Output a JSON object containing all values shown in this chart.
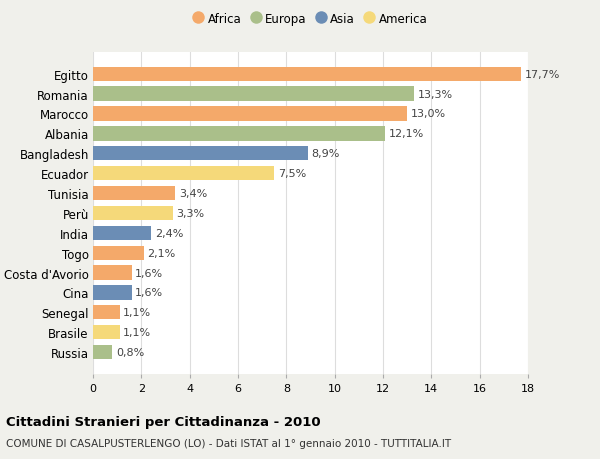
{
  "countries": [
    "Egitto",
    "Romania",
    "Marocco",
    "Albania",
    "Bangladesh",
    "Ecuador",
    "Tunisia",
    "Perù",
    "India",
    "Togo",
    "Costa d'Avorio",
    "Cina",
    "Senegal",
    "Brasile",
    "Russia"
  ],
  "values": [
    17.7,
    13.3,
    13.0,
    12.1,
    8.9,
    7.5,
    3.4,
    3.3,
    2.4,
    2.1,
    1.6,
    1.6,
    1.1,
    1.1,
    0.8
  ],
  "labels": [
    "17,7%",
    "13,3%",
    "13,0%",
    "12,1%",
    "8,9%",
    "7,5%",
    "3,4%",
    "3,3%",
    "2,4%",
    "2,1%",
    "1,6%",
    "1,6%",
    "1,1%",
    "1,1%",
    "0,8%"
  ],
  "continents": [
    "Africa",
    "Europa",
    "Africa",
    "Europa",
    "Asia",
    "America",
    "Africa",
    "America",
    "Asia",
    "Africa",
    "Africa",
    "Asia",
    "Africa",
    "America",
    "Europa"
  ],
  "continent_colors": {
    "Africa": "#F4A96A",
    "Europa": "#AABF8A",
    "Asia": "#6B8DB5",
    "America": "#F5D97A"
  },
  "legend_order": [
    "Africa",
    "Europa",
    "Asia",
    "America"
  ],
  "title": "Cittadini Stranieri per Cittadinanza - 2010",
  "subtitle": "COMUNE DI CASALPUSTERLENGO (LO) - Dati ISTAT al 1° gennaio 2010 - TUTTITALIA.IT",
  "xlim": [
    0,
    18
  ],
  "xticks": [
    0,
    2,
    4,
    6,
    8,
    10,
    12,
    14,
    16,
    18
  ],
  "background_color": "#f0f0eb",
  "bar_background": "#ffffff",
  "grid_color": "#dddddd",
  "label_fontsize": 8,
  "ytick_fontsize": 8.5,
  "xtick_fontsize": 8,
  "title_fontsize": 9.5,
  "subtitle_fontsize": 7.5,
  "bar_height": 0.72
}
